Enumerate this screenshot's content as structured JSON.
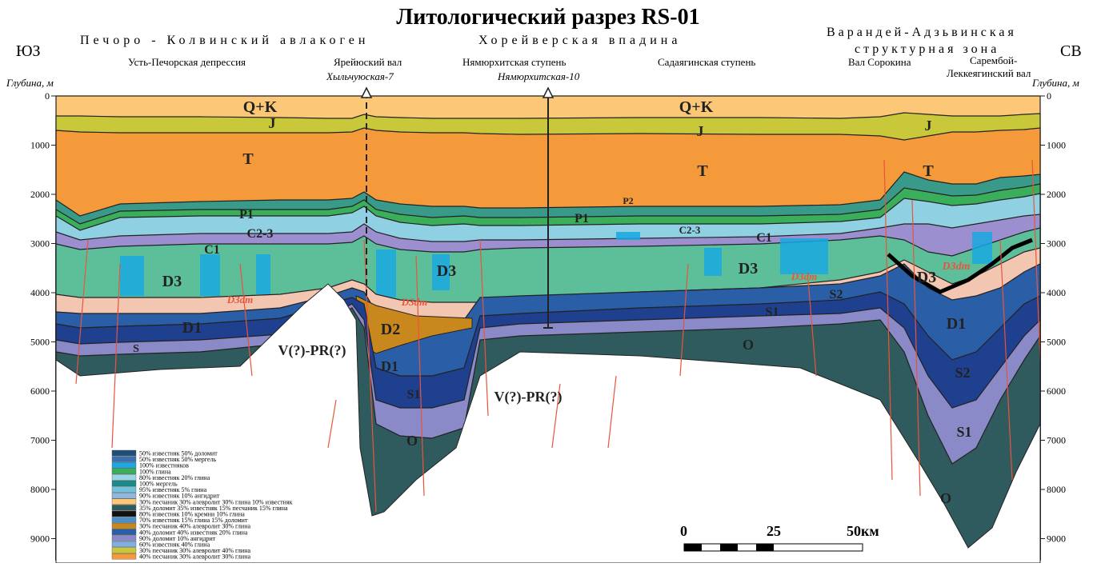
{
  "title": "Литологический разрез RS-01",
  "sides": {
    "left": "ЮЗ",
    "right": "СВ"
  },
  "regions": [
    "Печоро - Колвинский авлакоген",
    "Хорейверская впадина",
    "Варандей-Адзьвинская",
    "структурная зона"
  ],
  "structures": [
    "Усть-Печорская депрессия",
    "Ярейюский вал",
    "Нямюрхитская ступень",
    "Садаягинская ступень",
    "Вал Сорокина",
    "Сарембой-",
    "Леккеягинский вал"
  ],
  "wells": [
    "Хыльчуюская-7",
    "Нямюрхитская-10"
  ],
  "depth_axis": {
    "label": "Глубина, м",
    "ticks": [
      0,
      1000,
      2000,
      3000,
      4000,
      5000,
      6000,
      7000,
      8000,
      9000
    ]
  },
  "layer_labels": [
    "Q+K",
    "Q+K",
    "J",
    "J",
    "J",
    "T",
    "T",
    "T",
    "P1",
    "P1",
    "P2",
    "C2-3",
    "C2-3",
    "C1",
    "C1",
    "D3",
    "D3",
    "D3",
    "D3",
    "D3dm",
    "D3dm",
    "D3dm",
    "D3dm",
    "D2",
    "D1",
    "D1",
    "D1",
    "S1",
    "S1",
    "S1",
    "S2",
    "S2",
    "S",
    "O",
    "O",
    "O",
    "V(?)-PR(?)",
    "V(?)-PR(?)"
  ],
  "legend": [
    {
      "label": "50% известняк 50% доломит",
      "color": "#1f4e79"
    },
    {
      "label": "50% известняк 50% мергель",
      "color": "#3a6fb0"
    },
    {
      "label": "100% известняков",
      "color": "#19a8e0"
    },
    {
      "label": "100% глина",
      "color": "#3aae5a"
    },
    {
      "label": "80% известняк 20% глина",
      "color": "#9ad6e6"
    },
    {
      "label": "100% мергель",
      "color": "#1a8a8a"
    },
    {
      "label": "95% известняк 5% глина",
      "color": "#6fc3dc"
    },
    {
      "label": "90% известняк 10% ангидрит",
      "color": "#8fb8dc"
    },
    {
      "label": "30% песчаник 30% алевролит 30% глина 10% известняк",
      "color": "#fcc878"
    },
    {
      "label": "35% доломит 35% известняк 15% песчаник 15% глина",
      "color": "#2f5a5e"
    },
    {
      "label": "80% известняк 10% кремни 10% глина",
      "color": "#111111"
    },
    {
      "label": "70% известняк 15% глина 15% доломит",
      "color": "#4a8fc8"
    },
    {
      "label": "30% песчаник 40% алевролит 30% глина",
      "color": "#c8881e"
    },
    {
      "label": "40% доломит 40% известняк 20% глина",
      "color": "#2a5fa8"
    },
    {
      "label": "90% доломит 10% ангидрит",
      "color": "#8a8ac8"
    },
    {
      "label": "60% известняк 40% глина",
      "color": "#7fb0e0"
    },
    {
      "label": "30% песчаник 30% алевролит 40% глина",
      "color": "#c8c83a"
    },
    {
      "label": "40% песчаник 30% алевролит 30% глина",
      "color": "#f49a3a"
    }
  ],
  "scale": [
    "0",
    "25",
    "50км"
  ]
}
